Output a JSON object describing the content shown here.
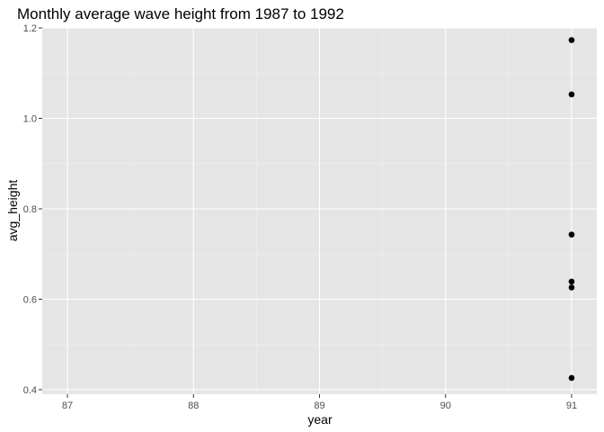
{
  "chart_data": {
    "type": "scatter",
    "title": "Monthly average wave height from 1987 to 1992",
    "xlabel": "year",
    "ylabel": "avg_height",
    "xlim": [
      86.8,
      91.2
    ],
    "ylim": [
      0.39,
      1.2
    ],
    "x_ticks": [
      87,
      88,
      89,
      90,
      91
    ],
    "x_tick_labels": [
      "87",
      "88",
      "89",
      "90",
      "91"
    ],
    "y_ticks": [
      0.4,
      0.6,
      0.8,
      1.0,
      1.2
    ],
    "y_tick_labels": [
      "0.4",
      "0.6",
      "0.8",
      "1.0",
      "1.2"
    ],
    "grid": true,
    "legend": "none",
    "panel_color": "#e5e5e5",
    "point_color": "#000000",
    "points": [
      {
        "x": 91,
        "y": 1.173
      },
      {
        "x": 91,
        "y": 1.053
      },
      {
        "x": 91,
        "y": 0.743
      },
      {
        "x": 91,
        "y": 0.639
      },
      {
        "x": 91,
        "y": 0.626
      },
      {
        "x": 91,
        "y": 0.426
      }
    ]
  }
}
